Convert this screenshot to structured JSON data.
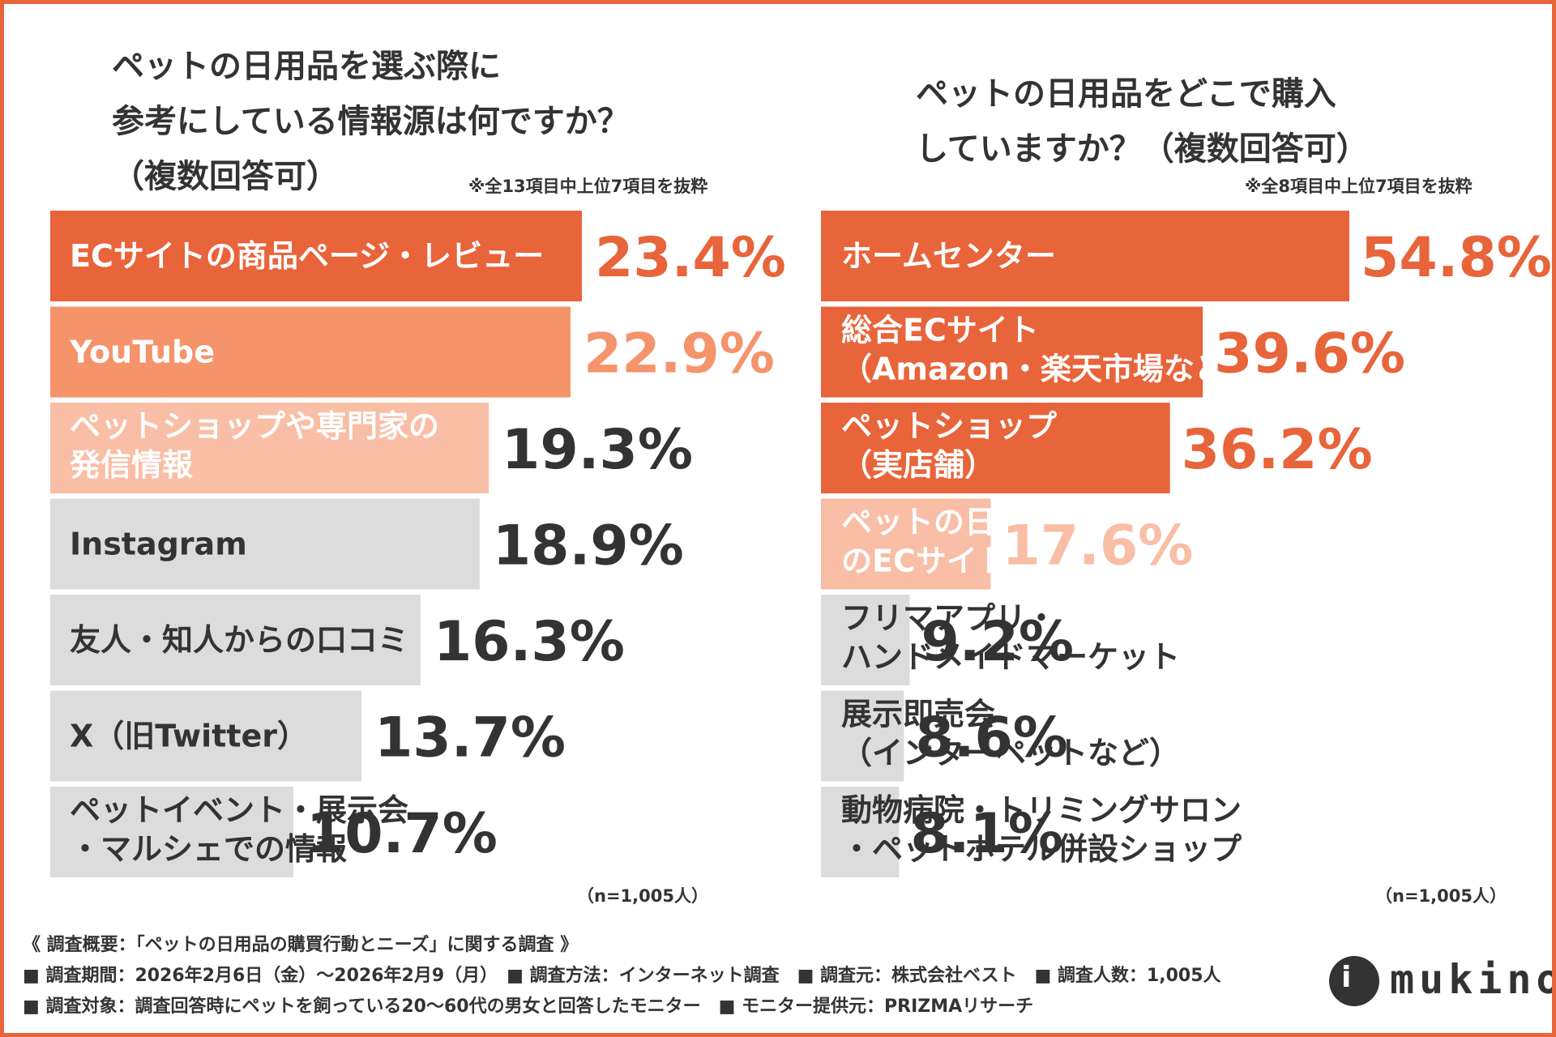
{
  "colors": {
    "accent_dark": "#e8643a",
    "accent_mid": "#f5936b",
    "accent_light": "#f9bea6",
    "gray": "#dcdcdc",
    "text_dark": "#333333",
    "white": "#ffffff"
  },
  "left": {
    "title": "ペットの日用品を選ぶ際に\n参考にしている情報源は何ですか？\n（複数回答可）",
    "note": "※全13項目中上位7項目を抜粋",
    "sample": "（n=1,005人）"
  },
  "right": {
    "title": "ペットの日用品をどこで購入\nしていますか？（複数回答可）",
    "note": "※全8項目中上位7項目を抜粋",
    "sample": "（n=1,005人）"
  },
  "chart_data": [
    {
      "type": "bar",
      "orientation": "horizontal",
      "categories": [
        "ECサイトの商品ページ・レビュー",
        "YouTube",
        "ペットショップや専門家の\n発信情報",
        "Instagram",
        "友人・知人からの口コミ",
        "X（旧Twitter）",
        "ペットイベント・展示会\n・マルシェでの情報"
      ],
      "values": [
        23.4,
        22.9,
        19.3,
        18.9,
        16.3,
        13.7,
        10.7
      ],
      "value_labels": [
        "23.4%",
        "22.9%",
        "19.3%",
        "18.9%",
        "16.3%",
        "13.7%",
        "10.7%"
      ],
      "styles": [
        "dark",
        "mid",
        "light",
        "gray",
        "gray",
        "gray",
        "gray"
      ],
      "xlim": [
        0,
        23.4
      ]
    },
    {
      "type": "bar",
      "orientation": "horizontal",
      "categories": [
        "ホームセンター",
        "総合ECサイト\n（Amazon・楽天市場など）",
        "ペットショップ\n（実店舗）",
        "ペットの日用品専門\nのECサイト",
        "フリマアプリ・\nハンドメイドマーケット",
        "展示即売会\n（インターペットなど）",
        "動物病院・トリミングサロン\n・ペットホテル併設ショップ"
      ],
      "values": [
        54.8,
        39.6,
        36.2,
        17.6,
        9.2,
        8.6,
        8.1
      ],
      "value_labels": [
        "54.8%",
        "39.6%",
        "36.2%",
        "17.6%",
        "9.2%",
        "8.6%",
        "8.1%"
      ],
      "styles": [
        "dark",
        "dark",
        "dark",
        "light",
        "gray",
        "gray",
        "gray"
      ],
      "xlim": [
        0,
        54.8
      ]
    }
  ],
  "footer": {
    "line1": "《 調査概要：「ペットの日用品の購買行動とニーズ」に関する調査 》",
    "line2": "■ 調査期間：2026年2月6日（金）～2026年2月9（月）　■ 調査方法：インターネット調査　■ 調査元：株式会社ベスト　■ 調査人数：1,005人",
    "line3": "■ 調査対象：調査回答時にペットを飼っている20～60代の男女と回答したモニター　■ モニター提供元：PRIZMAリサーチ"
  },
  "logo": {
    "text": "mukino",
    "mark": "i"
  }
}
